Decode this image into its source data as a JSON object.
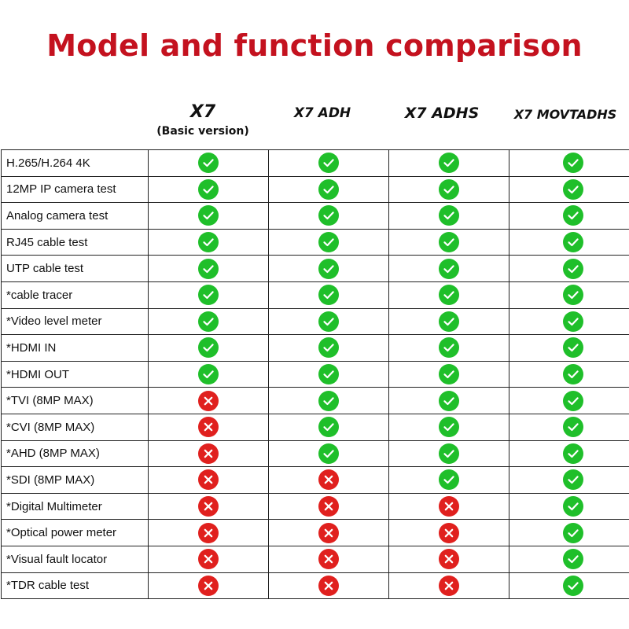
{
  "title": "Model and function comparison",
  "colors": {
    "title": "#c4121f",
    "check": "#1fbf2a",
    "cross": "#e0201e"
  },
  "models": [
    {
      "name": "X7",
      "sub": "(Basic version)"
    },
    {
      "name": "X7 ADH"
    },
    {
      "name": "X7 ADHS"
    },
    {
      "name": "X7 MOVTADHS"
    }
  ],
  "rows": [
    {
      "feature": "H.265/H.264 4K",
      "support": [
        "check",
        "check",
        "check",
        "check"
      ]
    },
    {
      "feature": "12MP IP camera test",
      "support": [
        "check",
        "check",
        "check",
        "check"
      ]
    },
    {
      "feature": "Analog camera test",
      "support": [
        "check",
        "check",
        "check",
        "check"
      ]
    },
    {
      "feature": "RJ45 cable test",
      "support": [
        "check",
        "check",
        "check",
        "check"
      ]
    },
    {
      "feature": "UTP cable test",
      "support": [
        "check",
        "check",
        "check",
        "check"
      ]
    },
    {
      "feature": "*cable tracer",
      "support": [
        "check",
        "check",
        "check",
        "check"
      ]
    },
    {
      "feature": "*Video level meter",
      "support": [
        "check",
        "check",
        "check",
        "check"
      ]
    },
    {
      "feature": "*HDMI IN",
      "support": [
        "check",
        "check",
        "check",
        "check"
      ]
    },
    {
      "feature": "*HDMI OUT",
      "support": [
        "check",
        "check",
        "check",
        "check"
      ]
    },
    {
      "feature": "*TVI (8MP MAX)",
      "support": [
        "cross",
        "check",
        "check",
        "check"
      ]
    },
    {
      "feature": "*CVI (8MP MAX)",
      "support": [
        "cross",
        "check",
        "check",
        "check"
      ]
    },
    {
      "feature": "*AHD (8MP MAX)",
      "support": [
        "cross",
        "check",
        "check",
        "check"
      ]
    },
    {
      "feature": "*SDI (8MP MAX)",
      "support": [
        "cross",
        "cross",
        "check",
        "check"
      ]
    },
    {
      "feature": "*Digital Multimeter",
      "support": [
        "cross",
        "cross",
        "cross",
        "check"
      ]
    },
    {
      "feature": "*Optical power meter",
      "support": [
        "cross",
        "cross",
        "cross",
        "check"
      ]
    },
    {
      "feature": "*Visual fault locator",
      "support": [
        "cross",
        "cross",
        "cross",
        "check"
      ]
    },
    {
      "feature": "*TDR cable test",
      "support": [
        "cross",
        "cross",
        "cross",
        "check"
      ]
    }
  ]
}
